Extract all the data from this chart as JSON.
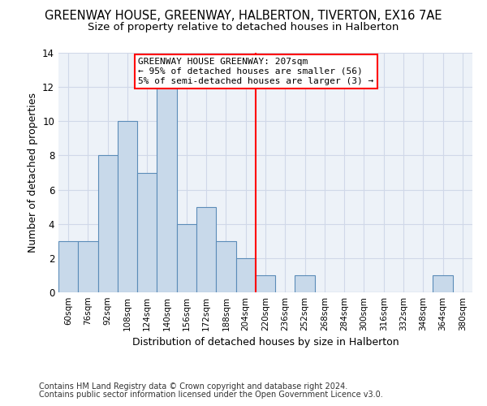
{
  "title": "GREENWAY HOUSE, GREENWAY, HALBERTON, TIVERTON, EX16 7AE",
  "subtitle": "Size of property relative to detached houses in Halberton",
  "xlabel": "Distribution of detached houses by size in Halberton",
  "ylabel": "Number of detached properties",
  "categories": [
    "60sqm",
    "76sqm",
    "92sqm",
    "108sqm",
    "124sqm",
    "140sqm",
    "156sqm",
    "172sqm",
    "188sqm",
    "204sqm",
    "220sqm",
    "236sqm",
    "252sqm",
    "268sqm",
    "284sqm",
    "300sqm",
    "316sqm",
    "332sqm",
    "348sqm",
    "364sqm",
    "380sqm"
  ],
  "values": [
    3,
    3,
    8,
    10,
    7,
    12,
    4,
    5,
    3,
    2,
    1,
    0,
    1,
    0,
    0,
    0,
    0,
    0,
    0,
    1,
    0
  ],
  "bar_color": "#c8d9ea",
  "bar_edgecolor": "#5b8cb8",
  "bar_linewidth": 0.8,
  "redline_index": 9.5,
  "annotation_title": "GREENWAY HOUSE GREENWAY: 207sqm",
  "annotation_line1": "← 95% of detached houses are smaller (56)",
  "annotation_line2": "5% of semi-detached houses are larger (3) →",
  "ylim": [
    0,
    14
  ],
  "yticks": [
    0,
    2,
    4,
    6,
    8,
    10,
    12,
    14
  ],
  "grid_color": "#d0d8e8",
  "background_color": "#edf2f8",
  "footnote1": "Contains HM Land Registry data © Crown copyright and database right 2024.",
  "footnote2": "Contains public sector information licensed under the Open Government Licence v3.0.",
  "title_fontsize": 10.5,
  "subtitle_fontsize": 9.5,
  "annot_fontsize": 8.0,
  "xlabel_fontsize": 9.0,
  "ylabel_fontsize": 9.0,
  "tick_fontsize": 7.5,
  "ytick_fontsize": 8.5,
  "footnote_fontsize": 7.0
}
